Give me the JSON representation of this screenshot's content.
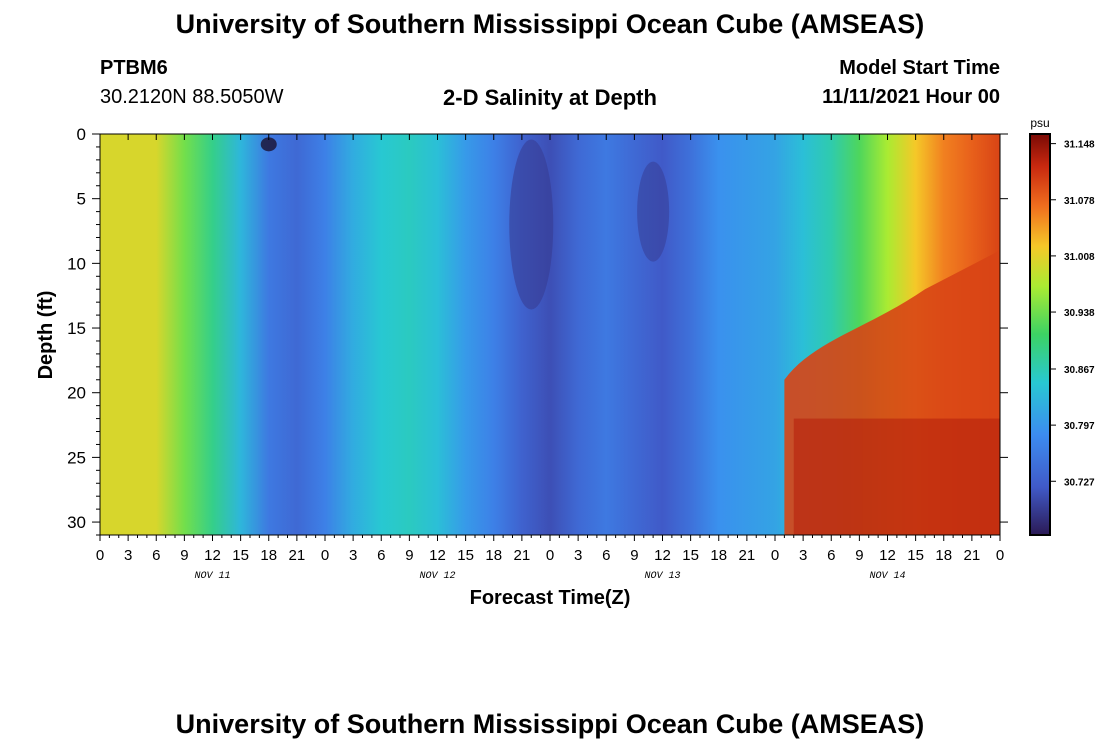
{
  "header": {
    "title": "University of Southern Mississippi Ocean Cube (AMSEAS)",
    "station_id": "PTBM6",
    "station_coords": "30.2120N  88.5050W",
    "chart_heading": "2-D Salinity at Depth",
    "model_start_label": "Model Start Time",
    "model_start_value": "11/11/2021 Hour 00"
  },
  "footer": {
    "title": "University of Southern Mississippi Ocean Cube (AMSEAS)"
  },
  "chart_data": {
    "type": "heatmap",
    "title": "2-D Salinity at Depth",
    "xlabel": "Forecast Time(Z)",
    "ylabel": "Depth (ft)",
    "x_range_hours": [
      0,
      96
    ],
    "y_range_ft": [
      0,
      31
    ],
    "x_ticks": [
      "0",
      "3",
      "6",
      "9",
      "12",
      "15",
      "18",
      "21",
      "0",
      "3",
      "6",
      "9",
      "12",
      "15",
      "18",
      "21",
      "0",
      "3",
      "6",
      "9",
      "12",
      "15",
      "18",
      "21",
      "0",
      "3",
      "6",
      "9",
      "12",
      "15",
      "18",
      "21",
      "0"
    ],
    "y_ticks": [
      "0",
      "5",
      "10",
      "15",
      "20",
      "25",
      "30"
    ],
    "day_labels": [
      "NOV 11",
      "NOV 12",
      "NOV 13",
      "NOV 14"
    ],
    "colorbar": {
      "unit": "psu",
      "ticks": [
        "31.148",
        "31.078",
        "31.008",
        "30.938",
        "30.867",
        "30.797",
        "30.727"
      ],
      "range": [
        30.66,
        31.16
      ]
    },
    "colors": {
      "low": "#2b1a55",
      "mid": "#3ec86e",
      "high": "#7a0a05"
    },
    "surface_profile_psu": [
      31.0,
      31.0,
      31.0,
      30.94,
      30.89,
      30.83,
      30.76,
      30.74,
      30.77,
      30.82,
      30.85,
      30.86,
      30.84,
      30.8,
      30.77,
      30.73,
      30.71,
      30.74,
      30.76,
      30.74,
      30.72,
      30.75,
      30.79,
      30.8,
      30.81,
      30.84,
      30.87,
      30.92,
      30.97,
      31.02,
      31.06,
      31.08,
      31.1
    ]
  }
}
